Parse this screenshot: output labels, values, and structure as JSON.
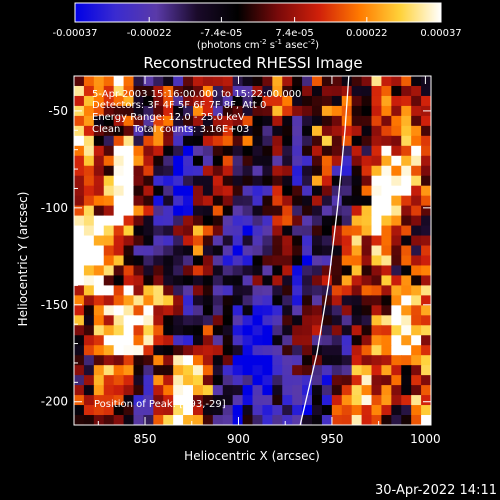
{
  "colors": {
    "background": "#000000",
    "foreground": "#ffffff",
    "colormap": [
      "#0000e6",
      "#3a2bd0",
      "#5a3aa8",
      "#1a0a2a",
      "#000000",
      "#7a0a0a",
      "#d0200a",
      "#ff7a00",
      "#ffd23a",
      "#ffffff"
    ]
  },
  "colorbar": {
    "ticks": [
      "-0.00037",
      "-0.00022",
      "-7.4e-05",
      "7.4e-05",
      "0.00022",
      "0.00037"
    ],
    "tick_values": [
      -0.00037,
      -0.00022,
      -7.4e-05,
      7.4e-05,
      0.00022,
      0.00037
    ],
    "range": [
      -0.00037,
      0.00037
    ],
    "unit_base": "(photons cm",
    "unit_sup1": "-2",
    "unit_mid": " s",
    "unit_sup2": "-1",
    "unit_mid2": " asec",
    "unit_sup3": "-2",
    "unit_end": ")"
  },
  "chart_data": {
    "type": "heatmap",
    "title": "Reconstructed RHESSI Image",
    "xlabel": "Heliocentric X (arcsec)",
    "ylabel": "Heliocentric Y (arcsec)",
    "xlim": [
      812,
      1003
    ],
    "ylim": [
      -212,
      -32
    ],
    "x_ticks": [
      850,
      900,
      950,
      1000
    ],
    "y_ticks": [
      -50,
      -100,
      -150,
      -200
    ],
    "limb_curve": {
      "x": [
        959,
        957,
        953,
        948,
        942,
        933
      ],
      "y": [
        -32,
        -60,
        -100,
        -140,
        -175,
        -212
      ]
    },
    "cell_values_sample": [
      [
        0.5,
        0.1,
        0.6,
        -0.2,
        0.0,
        -0.4,
        0.2,
        0.1,
        -0.1,
        -0.3,
        0.2,
        0.0,
        0.3,
        0.1,
        -0.1,
        0.4,
        0.5,
        0.2
      ],
      [
        0.7,
        0.4,
        0.9,
        0.2,
        -0.3,
        -0.6,
        -0.2,
        0.0,
        -0.4,
        -0.2,
        0.1,
        -0.5,
        0.0,
        -0.3,
        0.2,
        0.9,
        0.6,
        0.4
      ],
      [
        0.9,
        0.6,
        0.5,
        -0.1,
        -0.4,
        -0.3,
        0.1,
        -0.2,
        -0.6,
        -0.5,
        -0.1,
        -0.4,
        -0.2,
        0.1,
        0.3,
        0.6,
        0.3,
        0.1
      ],
      [
        0.4,
        0.8,
        0.9,
        0.6,
        0.2,
        -0.2,
        0.0,
        -0.4,
        -0.7,
        -0.6,
        -0.2,
        -0.3,
        -0.4,
        -0.2,
        0.2,
        0.5,
        0.8,
        0.5
      ],
      [
        0.1,
        0.3,
        0.2,
        -0.1,
        0.5,
        0.9,
        0.3,
        -0.3,
        -0.5,
        -0.8,
        -0.6,
        -0.5,
        -0.3,
        0.1,
        0.4,
        0.2,
        0.3,
        0.7
      ]
    ],
    "annotations": [
      "5-Apr-2003 15:16:00.000 to 15:22:00.000",
      "Detectors: 3F 4F 5F 6F 7F 8F, Att 0",
      "Energy Range: 12.0 - 25.0 keV",
      "Clean    Total counts: 3.16E+03",
      "Position of Peak: [893,-29]"
    ]
  },
  "footer": {
    "timestamp": "30-Apr-2022 14:11"
  }
}
